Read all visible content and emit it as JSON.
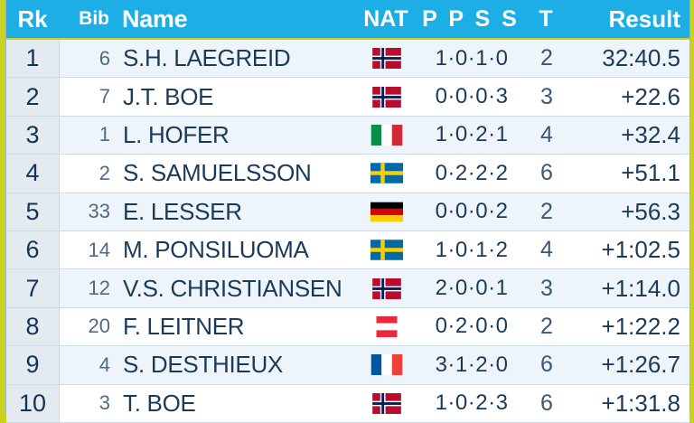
{
  "table": {
    "headers": {
      "rank": "Rk",
      "bib": "Bib",
      "name": "Name",
      "nat": "NAT",
      "shooting": "P P S S",
      "t": "T",
      "result": "Result"
    },
    "rows": [
      {
        "rank": "1",
        "bib": "6",
        "name": "S.H. LAEGREID",
        "nat": "NOR",
        "shooting": "1·0·1·0",
        "t": "2",
        "result": "32:40.5"
      },
      {
        "rank": "2",
        "bib": "7",
        "name": "J.T. BOE",
        "nat": "NOR",
        "shooting": "0·0·0·3",
        "t": "3",
        "result": "+22.6"
      },
      {
        "rank": "3",
        "bib": "1",
        "name": "L. HOFER",
        "nat": "ITA",
        "shooting": "1·0·2·1",
        "t": "4",
        "result": "+32.4"
      },
      {
        "rank": "4",
        "bib": "2",
        "name": "S. SAMUELSSON",
        "nat": "SWE",
        "shooting": "0·2·2·2",
        "t": "6",
        "result": "+51.1"
      },
      {
        "rank": "5",
        "bib": "33",
        "name": "E. LESSER",
        "nat": "GER",
        "shooting": "0·0·0·2",
        "t": "2",
        "result": "+56.3"
      },
      {
        "rank": "6",
        "bib": "14",
        "name": "M. PONSILUOMA",
        "nat": "SWE",
        "shooting": "1·0·1·2",
        "t": "4",
        "result": "+1:02.5"
      },
      {
        "rank": "7",
        "bib": "12",
        "name": "V.S. CHRISTIANSEN",
        "nat": "NOR",
        "shooting": "2·0·0·1",
        "t": "3",
        "result": "+1:14.0"
      },
      {
        "rank": "8",
        "bib": "20",
        "name": "F. LEITNER",
        "nat": "AUT",
        "shooting": "0·2·0·0",
        "t": "2",
        "result": "+1:22.2"
      },
      {
        "rank": "9",
        "bib": "4",
        "name": "S. DESTHIEUX",
        "nat": "FRA",
        "shooting": "3·1·2·0",
        "t": "6",
        "result": "+1:26.7"
      },
      {
        "rank": "10",
        "bib": "3",
        "name": "T. BOE",
        "nat": "NOR",
        "shooting": "1·0·2·3",
        "t": "6",
        "result": "+1:31.8"
      }
    ]
  },
  "colors": {
    "header_bg": "#1eaee6",
    "accent_border": "#c9d21e",
    "row_text": "#1b3a5a"
  }
}
